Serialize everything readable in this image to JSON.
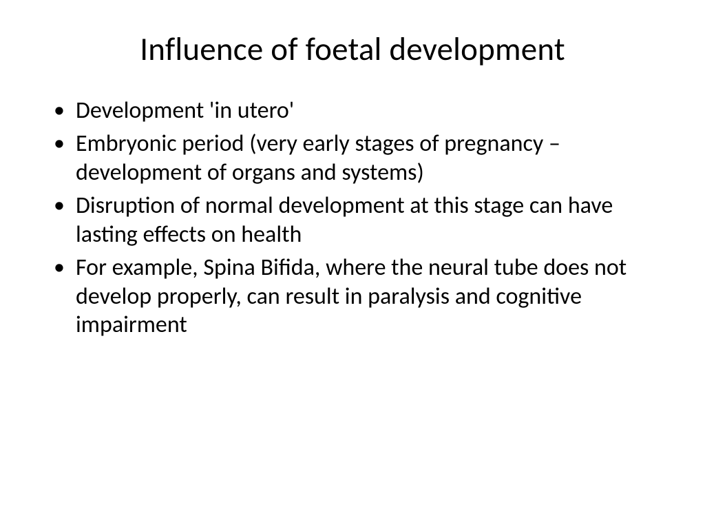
{
  "slide": {
    "title": "Influence of foetal development",
    "bullets": [
      "Development 'in utero'",
      "Embryonic period (very early stages of pregnancy – development of organs and systems)",
      "Disruption of normal development at this stage can have lasting effects on health",
      "For example, Spina Bifida, where the neural tube does not develop properly, can result in paralysis and cognitive impairment"
    ]
  },
  "styling": {
    "background_color": "#ffffff",
    "text_color": "#000000",
    "title_fontsize": 47,
    "title_fontweight": 400,
    "bullet_fontsize": 34,
    "font_family": "Calibri",
    "bullet_char": "•",
    "line_height": 1.22,
    "slide_width": 1024,
    "slide_height": 768
  }
}
